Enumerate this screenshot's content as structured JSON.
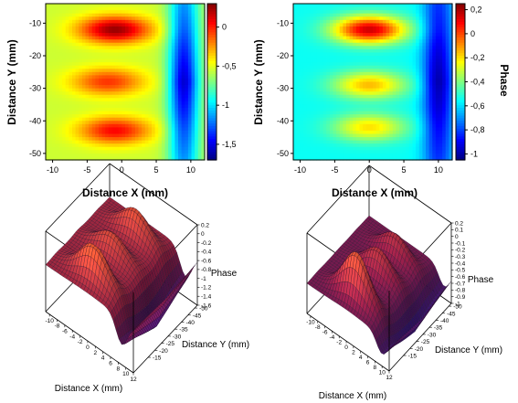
{
  "chart_data": [
    {
      "type": "heatmap",
      "xlabel": "Distance X (mm)",
      "ylabel": "Distance Y (mm)",
      "xlim": [
        -11,
        12
      ],
      "ylim": [
        -52,
        -4
      ],
      "xticks": [
        "-10",
        "-5",
        "0",
        "5",
        "10"
      ],
      "yticks": [
        "-10",
        "-20",
        "-30",
        "-40",
        "-50"
      ],
      "colorbar_ticks": [
        "0",
        "-0,5",
        "-1",
        "-1,5"
      ],
      "colorbar_range": [
        -1.7,
        0.3
      ],
      "colorscale": "jet",
      "grid": false,
      "field": {
        "baseline": -0.55,
        "hotspots": [
          {
            "x": -1,
            "y": -12,
            "value": 0.25
          },
          {
            "x": -2,
            "y": -28,
            "value": -0.05
          },
          {
            "x": -1,
            "y": -43,
            "value": 0.05
          }
        ],
        "minimum_band": {
          "x": 9,
          "value": -1.55
        }
      }
    },
    {
      "type": "heatmap",
      "xlabel": "Distance X (mm)",
      "ylabel": "Distance Y (mm)",
      "colorbar_label": "Phase",
      "xlim": [
        -11,
        12
      ],
      "ylim": [
        -52,
        -4
      ],
      "xticks": [
        "-10",
        "-5",
        "0",
        "5",
        "10"
      ],
      "yticks": [
        "-10",
        "-20",
        "-30",
        "-40",
        "-50"
      ],
      "colorbar_ticks": [
        "0,2",
        "0",
        "-0,2",
        "-0,4",
        "-0,6",
        "-0,8",
        "-1"
      ],
      "colorbar_range": [
        -1.05,
        0.25
      ],
      "colorscale": "jet",
      "grid": false,
      "field": {
        "baseline": -0.55,
        "hotspots": [
          {
            "x": 0,
            "y": -12,
            "value": 0.15
          },
          {
            "x": 0,
            "y": -29,
            "value": -0.15
          },
          {
            "x": 0,
            "y": -42,
            "value": -0.2
          }
        ],
        "minimum_band": {
          "x": 10,
          "value": -1.0
        }
      }
    },
    {
      "type": "surface",
      "xlabel": "Distance X (mm)",
      "ylabel": "Distance Y (mm)",
      "zlabel": "Phase",
      "xticks": [
        "-10",
        "-8",
        "-6",
        "-4",
        "-2",
        "0",
        "2",
        "4",
        "6",
        "8",
        "10",
        "12"
      ],
      "yticks": [
        "-15",
        "-20",
        "-25",
        "-30",
        "-35",
        "-40",
        "-45",
        "-50"
      ],
      "zticks": [
        "0.2",
        "0",
        "-0.2",
        "-0.4",
        "-0.6",
        "-0.8",
        "-1",
        "-1.2",
        "-1.4",
        "-1.6"
      ],
      "zlim": [
        -1.6,
        0.2
      ],
      "colorscale": "red-purple"
    },
    {
      "type": "surface",
      "xlabel": "Distance X (mm)",
      "ylabel": "Distance Y (mm)",
      "zlabel": "Phase",
      "xticks": [
        "-10",
        "-8",
        "-6",
        "-4",
        "-2",
        "0",
        "2",
        "4",
        "6",
        "8",
        "10",
        "12"
      ],
      "yticks": [
        "-15",
        "-20",
        "-25",
        "-30",
        "-35",
        "-40",
        "-45",
        "-50"
      ],
      "zticks": [
        "0.2",
        "0.1",
        "0",
        "-0.1",
        "-0.2",
        "-0.3",
        "-0.4",
        "-0.5",
        "-0.6",
        "-0.7",
        "-0.8",
        "-0.9",
        "-1"
      ],
      "zlim": [
        -1,
        0.2
      ],
      "colorscale": "red-purple"
    }
  ]
}
